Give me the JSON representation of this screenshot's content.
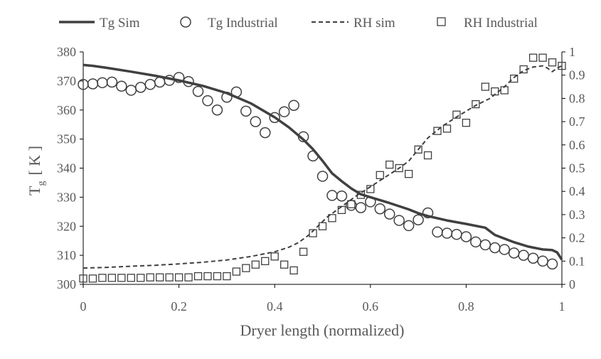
{
  "chart_data": {
    "type": "line",
    "title": "",
    "xlabel": "Dryer length (normalized)",
    "ylabel_left": {
      "main": "T",
      "sub": "g",
      "unit": "[ K ]"
    },
    "ylabel_right": "",
    "xlim": [
      0,
      1
    ],
    "ylim_left": [
      300,
      380
    ],
    "ylim_right": [
      0,
      1
    ],
    "x_ticks": [
      "0",
      "0.2",
      "0.4",
      "0.6",
      "0.8",
      "1"
    ],
    "y_left_ticks": [
      "300",
      "310",
      "320",
      "330",
      "340",
      "350",
      "360",
      "370",
      "380"
    ],
    "y_right_ticks": [
      "0",
      "0.1",
      "0.2",
      "0.3",
      "0.4",
      "0.5",
      "0.6",
      "0.7",
      "0.8",
      "0.9",
      "1"
    ],
    "grid": false,
    "legend_position": "top",
    "colors": {
      "series": "#404040",
      "text": "#595959",
      "axis": "#000000"
    },
    "series": [
      {
        "name": "Tg Sim",
        "axis": "left",
        "style": "solid-line",
        "x": [
          0,
          0.02,
          0.05,
          0.1,
          0.15,
          0.2,
          0.25,
          0.3,
          0.35,
          0.4,
          0.43,
          0.46,
          0.48,
          0.5,
          0.52,
          0.54,
          0.56,
          0.58,
          0.6,
          0.64,
          0.68,
          0.7,
          0.72,
          0.76,
          0.8,
          0.84,
          0.86,
          0.9,
          0.93,
          0.96,
          0.98,
          0.99,
          1.0
        ],
        "y": [
          375.5,
          375.2,
          374.5,
          373.2,
          371.8,
          370.2,
          368.3,
          365.8,
          362.3,
          357.5,
          354.0,
          349.8,
          346.5,
          342.5,
          338.2,
          335.5,
          333.0,
          331.0,
          330.0,
          328.0,
          325.8,
          324.5,
          323.5,
          322.0,
          320.8,
          319.5,
          317.0,
          314.5,
          313.0,
          312.0,
          311.8,
          311.0,
          308.5
        ]
      },
      {
        "name": "Tg Industrial",
        "axis": "left",
        "style": "circle-marker",
        "x": [
          0.0,
          0.02,
          0.04,
          0.06,
          0.08,
          0.1,
          0.12,
          0.14,
          0.16,
          0.18,
          0.2,
          0.22,
          0.24,
          0.26,
          0.28,
          0.3,
          0.32,
          0.34,
          0.36,
          0.38,
          0.4,
          0.42,
          0.44,
          0.46,
          0.48,
          0.5,
          0.52,
          0.54,
          0.56,
          0.58,
          0.6,
          0.62,
          0.64,
          0.66,
          0.68,
          0.7,
          0.72,
          0.74,
          0.76,
          0.78,
          0.8,
          0.82,
          0.84,
          0.86,
          0.88,
          0.9,
          0.92,
          0.94,
          0.96,
          0.98
        ],
        "y": [
          368.8,
          369.0,
          369.4,
          369.6,
          368.2,
          366.8,
          367.8,
          368.8,
          369.6,
          370.2,
          371.2,
          369.8,
          366.4,
          363.2,
          360.0,
          364.4,
          366.2,
          359.6,
          356.0,
          352.2,
          357.4,
          359.4,
          361.6,
          350.8,
          344.2,
          337.2,
          330.6,
          330.4,
          327.2,
          326.4,
          328.4,
          326.0,
          324.2,
          322.0,
          320.2,
          322.2,
          324.6,
          318.0,
          317.6,
          317.2,
          316.4,
          314.6,
          313.6,
          312.6,
          312.0,
          310.8,
          310.0,
          309.0,
          308.0,
          307.0
        ]
      },
      {
        "name": "RH sim",
        "axis": "right",
        "style": "dashed-line",
        "x": [
          0,
          0.05,
          0.1,
          0.15,
          0.2,
          0.25,
          0.3,
          0.35,
          0.4,
          0.43,
          0.45,
          0.47,
          0.49,
          0.51,
          0.53,
          0.55,
          0.57,
          0.6,
          0.63,
          0.66,
          0.68,
          0.7,
          0.72,
          0.75,
          0.78,
          0.8,
          0.82,
          0.85,
          0.88,
          0.9,
          0.92,
          0.94,
          0.96,
          0.97,
          0.98,
          0.99,
          1.0
        ],
        "y": [
          0.07,
          0.073,
          0.078,
          0.082,
          0.088,
          0.095,
          0.105,
          0.12,
          0.14,
          0.16,
          0.18,
          0.21,
          0.25,
          0.29,
          0.32,
          0.35,
          0.38,
          0.42,
          0.46,
          0.5,
          0.53,
          0.58,
          0.63,
          0.68,
          0.72,
          0.745,
          0.77,
          0.8,
          0.85,
          0.89,
          0.92,
          0.935,
          0.94,
          0.93,
          0.915,
          0.93,
          0.94
        ]
      },
      {
        "name": "RH Industrial",
        "axis": "right",
        "style": "square-marker",
        "x": [
          0.0,
          0.02,
          0.04,
          0.06,
          0.08,
          0.1,
          0.12,
          0.14,
          0.16,
          0.18,
          0.2,
          0.22,
          0.24,
          0.26,
          0.28,
          0.3,
          0.32,
          0.34,
          0.36,
          0.38,
          0.4,
          0.42,
          0.44,
          0.46,
          0.48,
          0.5,
          0.52,
          0.54,
          0.56,
          0.58,
          0.6,
          0.62,
          0.64,
          0.66,
          0.68,
          0.7,
          0.72,
          0.74,
          0.76,
          0.78,
          0.8,
          0.82,
          0.84,
          0.86,
          0.88,
          0.9,
          0.92,
          0.94,
          0.96,
          0.98,
          1.0
        ],
        "y": [
          0.025,
          0.025,
          0.028,
          0.028,
          0.028,
          0.028,
          0.028,
          0.03,
          0.03,
          0.03,
          0.03,
          0.03,
          0.035,
          0.035,
          0.035,
          0.035,
          0.055,
          0.07,
          0.085,
          0.1,
          0.12,
          0.085,
          0.06,
          0.14,
          0.22,
          0.25,
          0.285,
          0.32,
          0.345,
          0.385,
          0.41,
          0.47,
          0.515,
          0.5,
          0.475,
          0.58,
          0.555,
          0.66,
          0.67,
          0.73,
          0.695,
          0.775,
          0.85,
          0.83,
          0.835,
          0.885,
          0.925,
          0.975,
          0.975,
          0.955,
          0.94
        ]
      }
    ]
  }
}
